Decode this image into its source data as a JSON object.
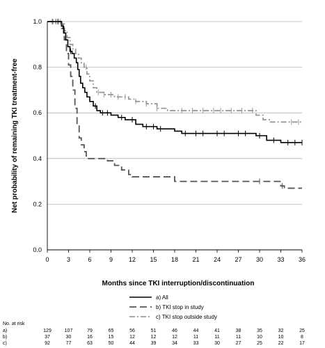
{
  "chart_data": {
    "type": "line",
    "subtype": "kaplan-meier step",
    "xlabel": "Months since TKI interruption/discontinuation",
    "ylabel": "Net probability of remaining TKI treatment-free",
    "xlim": [
      0,
      36
    ],
    "ylim": [
      0,
      1
    ],
    "xticks": [
      0,
      3,
      6,
      9,
      12,
      15,
      18,
      21,
      24,
      27,
      30,
      33,
      36
    ],
    "yticks": [
      "0.0",
      "0.2",
      "0.4",
      "0.6",
      "0.8",
      "1.0"
    ],
    "grid": "horizontal",
    "legend_position": "bottom-right",
    "series": [
      {
        "name": "a) All",
        "color": "#000000",
        "style": "solid",
        "points": [
          [
            0,
            1.0
          ],
          [
            1,
            1.0
          ],
          [
            2,
            0.98
          ],
          [
            2.3,
            0.95
          ],
          [
            2.6,
            0.92
          ],
          [
            2.9,
            0.89
          ],
          [
            3.2,
            0.87
          ],
          [
            3.5,
            0.86
          ],
          [
            3.8,
            0.84
          ],
          [
            4.1,
            0.82
          ],
          [
            4.3,
            0.79
          ],
          [
            4.5,
            0.76
          ],
          [
            4.7,
            0.73
          ],
          [
            5.0,
            0.71
          ],
          [
            5.3,
            0.69
          ],
          [
            5.6,
            0.67
          ],
          [
            6.0,
            0.65
          ],
          [
            6.5,
            0.63
          ],
          [
            7.0,
            0.61
          ],
          [
            7.5,
            0.6
          ],
          [
            9.0,
            0.59
          ],
          [
            10.0,
            0.58
          ],
          [
            11.0,
            0.57
          ],
          [
            12.5,
            0.55
          ],
          [
            13.5,
            0.54
          ],
          [
            15.5,
            0.53
          ],
          [
            18.0,
            0.52
          ],
          [
            19.0,
            0.51
          ],
          [
            29.5,
            0.5
          ],
          [
            31.0,
            0.48
          ],
          [
            33.0,
            0.47
          ],
          [
            36.0,
            0.47
          ]
        ],
        "censor_x": [
          1.5,
          2.2,
          3.3,
          6.8,
          7.8,
          8.5,
          10.5,
          12.0,
          14.0,
          15.0,
          16.0,
          19.5,
          21.0,
          22.0,
          24.0,
          25.0,
          27.0,
          28.0,
          30.0,
          32.0,
          34.0,
          35.0,
          36.0
        ]
      },
      {
        "name": "b) TKI stop in study",
        "color": "#555555",
        "style": "dashed",
        "points": [
          [
            0,
            1.0
          ],
          [
            1.5,
            1.0
          ],
          [
            2.0,
            0.97
          ],
          [
            2.4,
            0.92
          ],
          [
            2.7,
            0.86
          ],
          [
            3.0,
            0.81
          ],
          [
            3.3,
            0.76
          ],
          [
            3.6,
            0.7
          ],
          [
            3.9,
            0.62
          ],
          [
            4.2,
            0.55
          ],
          [
            4.5,
            0.49
          ],
          [
            4.8,
            0.46
          ],
          [
            5.2,
            0.43
          ],
          [
            5.5,
            0.4
          ],
          [
            8.5,
            0.39
          ],
          [
            9.5,
            0.37
          ],
          [
            10.5,
            0.35
          ],
          [
            11.5,
            0.33
          ],
          [
            12.0,
            0.32
          ],
          [
            18.0,
            0.3
          ],
          [
            33.0,
            0.28
          ],
          [
            33.5,
            0.27
          ],
          [
            36.0,
            0.27
          ]
        ],
        "censor_x": [
          0.7,
          1.2,
          30.0,
          33.2
        ]
      },
      {
        "name": "c) TKI stop outside study",
        "color": "#999999",
        "style": "dash-dot",
        "points": [
          [
            0,
            1.0
          ],
          [
            2.0,
            0.99
          ],
          [
            2.4,
            0.96
          ],
          [
            2.8,
            0.93
          ],
          [
            3.2,
            0.9
          ],
          [
            3.6,
            0.88
          ],
          [
            4.0,
            0.86
          ],
          [
            4.4,
            0.84
          ],
          [
            4.8,
            0.82
          ],
          [
            5.2,
            0.8
          ],
          [
            5.6,
            0.77
          ],
          [
            6.0,
            0.74
          ],
          [
            6.5,
            0.71
          ],
          [
            7.0,
            0.69
          ],
          [
            8.0,
            0.68
          ],
          [
            9.5,
            0.67
          ],
          [
            11.5,
            0.66
          ],
          [
            12.5,
            0.65
          ],
          [
            14.0,
            0.64
          ],
          [
            15.5,
            0.62
          ],
          [
            17.0,
            0.61
          ],
          [
            20.0,
            0.61
          ],
          [
            29.5,
            0.59
          ],
          [
            30.5,
            0.57
          ],
          [
            31.5,
            0.56
          ],
          [
            36.0,
            0.56
          ]
        ],
        "censor_x": [
          0.8,
          1.8,
          5.5,
          7.2,
          8.0,
          9.0,
          10.0,
          11.0,
          12.5,
          14.0,
          15.5,
          19.0,
          20.5,
          22.0,
          23.5,
          24.5,
          26.0,
          27.5,
          29.0,
          34.5,
          35.5
        ]
      }
    ],
    "risk_table": {
      "title": "No. at risk",
      "rows": [
        {
          "label": "a)",
          "values": [
            "129",
            "107",
            "79",
            "65",
            "56",
            "51",
            "46",
            "44",
            "41",
            "38",
            "35",
            "32",
            "25"
          ]
        },
        {
          "label": "b)",
          "values": [
            "37",
            "30",
            "16",
            "15",
            "12",
            "12",
            "12",
            "11",
            "11",
            "11",
            "10",
            "10",
            "8"
          ]
        },
        {
          "label": "c)",
          "values": [
            "92",
            "77",
            "63",
            "50",
            "44",
            "39",
            "34",
            "33",
            "30",
            "27",
            "25",
            "22",
            "17"
          ]
        }
      ]
    }
  }
}
